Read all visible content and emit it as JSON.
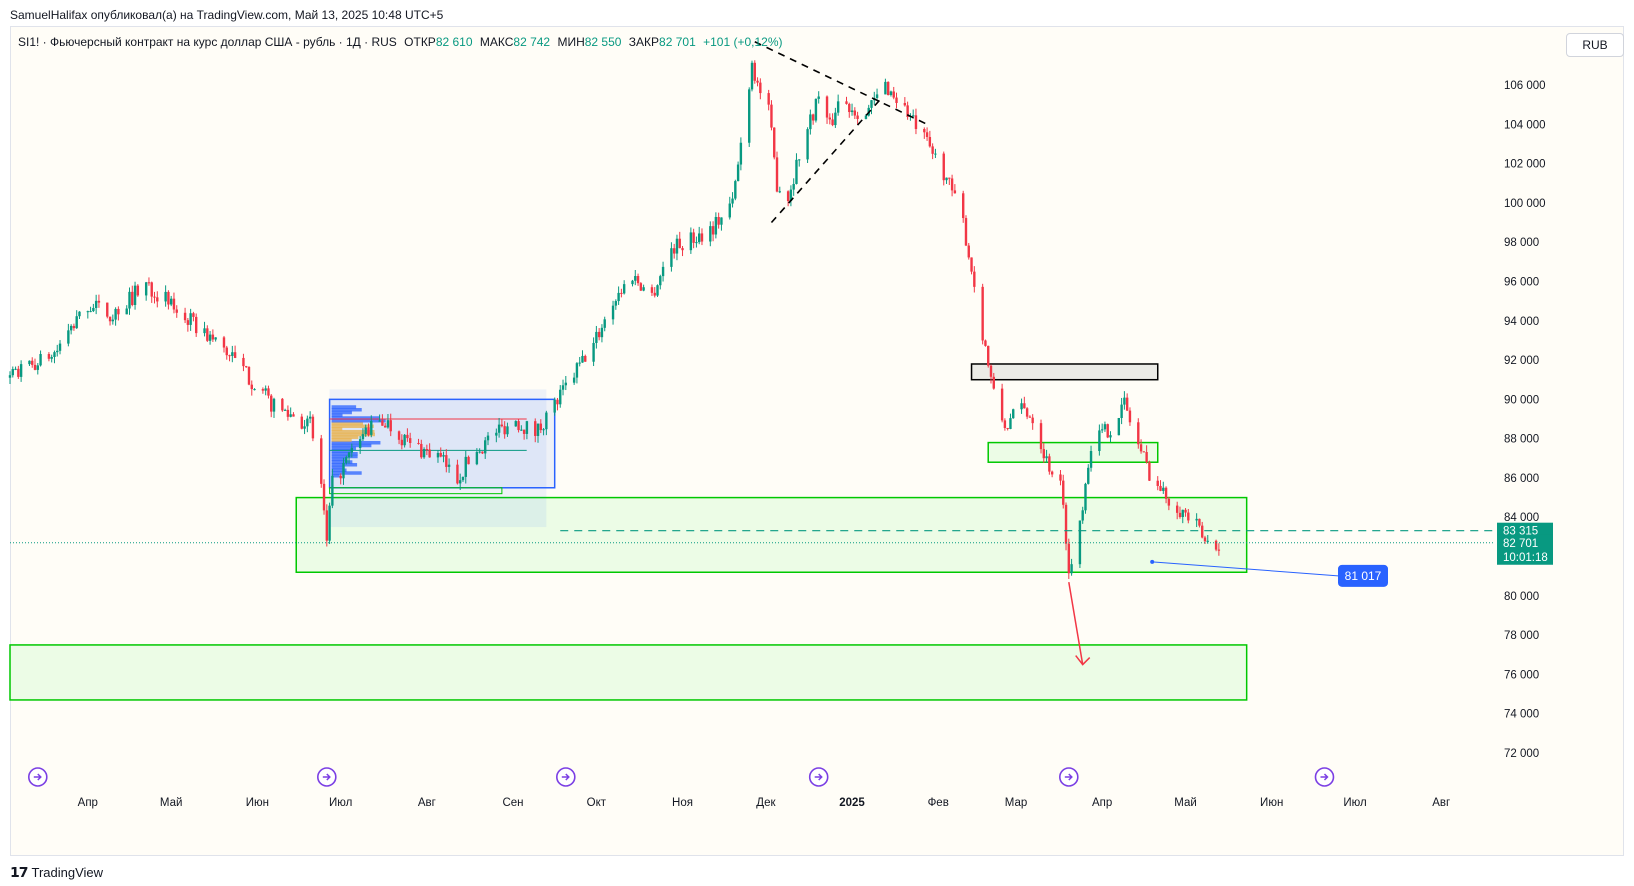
{
  "publish_line": "SamuelHalifax опубликовал(а) на TradingView.com, Май 13, 2025 10:48 UTC+5",
  "legend": {
    "symbol": "SI1! · Фьючерсный контракт на курс доллар США - рубль · 1Д · RUS",
    "open_label": "ОТКР",
    "open_value": "82 610",
    "high_label": "МАКС",
    "high_value": "82 742",
    "low_label": "МИН",
    "low_value": "82 550",
    "close_label": "ЗАКР",
    "close_value": "82 701",
    "change": "+101 (+0,12%)"
  },
  "currency_button": "RUB",
  "footer_logo_text": "TradingView",
  "colors": {
    "up": "#089981",
    "down": "#f23645",
    "zone_green": "#00c800",
    "zone_fill": "#e6fbe0",
    "blue_box": "#2962ff",
    "price_label_bg": "#089981",
    "alert_label_bg": "#2962ff"
  },
  "chart_data": {
    "type": "candlestick",
    "symbol": "SI1!",
    "interval": "1Д",
    "currency": "RUB",
    "y_range": [
      71000,
      109000
    ],
    "y_ticks": [
      72000,
      74000,
      76000,
      78000,
      80000,
      82000,
      84000,
      86000,
      88000,
      90000,
      92000,
      94000,
      96000,
      98000,
      100000,
      102000,
      104000,
      106000
    ],
    "y_tick_labels": [
      "72 000",
      "74 000",
      "76 000",
      "78 000",
      "80 000",
      "82 000",
      "84 000",
      "86 000",
      "88 000",
      "90 000",
      "92 000",
      "94 000",
      "96 000",
      "98 000",
      "100 000",
      "102 000",
      "104 000",
      "106 000"
    ],
    "x_domain": [
      "2024-03-04",
      "2025-08-20"
    ],
    "x_ticks": [
      {
        "date": "2024-04-01",
        "label": "Апр"
      },
      {
        "date": "2024-05-01",
        "label": "Май"
      },
      {
        "date": "2024-06-01",
        "label": "Июн"
      },
      {
        "date": "2024-07-01",
        "label": "Июл"
      },
      {
        "date": "2024-08-01",
        "label": "Авг"
      },
      {
        "date": "2024-09-01",
        "label": "Сен"
      },
      {
        "date": "2024-10-01",
        "label": "Окт"
      },
      {
        "date": "2024-11-01",
        "label": "Ноя"
      },
      {
        "date": "2024-12-01",
        "label": "Дек"
      },
      {
        "date": "2025-01-01",
        "label": "2025",
        "bold": true
      },
      {
        "date": "2025-02-01",
        "label": "Фев"
      },
      {
        "date": "2025-03-01",
        "label": "Мар"
      },
      {
        "date": "2025-04-01",
        "label": "Апр"
      },
      {
        "date": "2025-05-01",
        "label": "Май"
      },
      {
        "date": "2025-06-01",
        "label": "Июн"
      },
      {
        "date": "2025-07-01",
        "label": "Июл"
      },
      {
        "date": "2025-08-01",
        "label": "Авг"
      }
    ],
    "close_path": [
      [
        "2024-03-04",
        91100
      ],
      [
        "2024-03-20",
        92300
      ],
      [
        "2024-04-01",
        94800
      ],
      [
        "2024-04-10",
        94300
      ],
      [
        "2024-04-22",
        95900
      ],
      [
        "2024-04-30",
        94900
      ],
      [
        "2024-05-10",
        93700
      ],
      [
        "2024-05-20",
        92600
      ],
      [
        "2024-05-31",
        90800
      ],
      [
        "2024-06-07",
        89600
      ],
      [
        "2024-06-14",
        89200
      ],
      [
        "2024-06-20",
        88700
      ],
      [
        "2024-06-24",
        85700
      ],
      [
        "2024-06-26",
        82600
      ],
      [
        "2024-06-28",
        85700
      ],
      [
        "2024-07-03",
        86800
      ],
      [
        "2024-07-10",
        88400
      ],
      [
        "2024-07-17",
        88900
      ],
      [
        "2024-07-26",
        87700
      ],
      [
        "2024-08-05",
        87100
      ],
      [
        "2024-08-12",
        86000
      ],
      [
        "2024-08-16",
        86900
      ],
      [
        "2024-08-26",
        88400
      ],
      [
        "2024-09-02",
        88900
      ],
      [
        "2024-09-09",
        88300
      ],
      [
        "2024-09-16",
        89700
      ],
      [
        "2024-09-23",
        91300
      ],
      [
        "2024-09-30",
        92800
      ],
      [
        "2024-10-07",
        95000
      ],
      [
        "2024-10-14",
        96300
      ],
      [
        "2024-10-21",
        95300
      ],
      [
        "2024-10-28",
        97700
      ],
      [
        "2024-11-05",
        98200
      ],
      [
        "2024-11-12",
        98800
      ],
      [
        "2024-11-19",
        100000
      ],
      [
        "2024-11-22",
        103000
      ],
      [
        "2024-11-26",
        107200
      ],
      [
        "2024-11-28",
        106000
      ],
      [
        "2024-12-02",
        104600
      ],
      [
        "2024-12-05",
        101000
      ],
      [
        "2024-12-09",
        100300
      ],
      [
        "2024-12-13",
        102500
      ],
      [
        "2024-12-17",
        104200
      ],
      [
        "2024-12-20",
        105500
      ],
      [
        "2024-12-24",
        103800
      ],
      [
        "2024-12-27",
        105200
      ],
      [
        "2025-01-06",
        104500
      ],
      [
        "2025-01-13",
        106000
      ],
      [
        "2025-01-20",
        104800
      ],
      [
        "2025-01-27",
        103200
      ],
      [
        "2025-02-03",
        101600
      ],
      [
        "2025-02-10",
        99000
      ],
      [
        "2025-02-14",
        95800
      ],
      [
        "2025-02-18",
        92600
      ],
      [
        "2025-02-21",
        90200
      ],
      [
        "2025-02-25",
        88600
      ],
      [
        "2025-03-03",
        89600
      ],
      [
        "2025-03-07",
        89100
      ],
      [
        "2025-03-12",
        86900
      ],
      [
        "2025-03-17",
        85600
      ],
      [
        "2025-03-19",
        83100
      ],
      [
        "2025-03-20",
        81000
      ],
      [
        "2025-03-24",
        83800
      ],
      [
        "2025-03-28",
        87800
      ],
      [
        "2025-04-04",
        88600
      ],
      [
        "2025-04-09",
        89800
      ],
      [
        "2025-04-14",
        87700
      ],
      [
        "2025-04-18",
        86300
      ],
      [
        "2025-04-23",
        85200
      ],
      [
        "2025-04-28",
        84600
      ],
      [
        "2025-05-05",
        83500
      ],
      [
        "2025-05-08",
        82700
      ],
      [
        "2025-05-13",
        82701
      ]
    ],
    "ohlc_last": {
      "open": 82610,
      "high": 82742,
      "low": 82550,
      "close": 82701
    },
    "price_labels": [
      {
        "value": 83315,
        "text": "83 315"
      },
      {
        "value": 82701,
        "text": "82 701",
        "countdown": "10:01:18"
      }
    ],
    "alert_label": {
      "value": 81017,
      "text": "81 017"
    },
    "zones": [
      {
        "kind": "supply",
        "start": "2025-02-13",
        "end": "2025-04-21",
        "low": 91000,
        "high": 91800
      },
      {
        "kind": "demand",
        "start": "2025-02-19",
        "end": "2025-04-21",
        "low": 86800,
        "high": 87800
      },
      {
        "kind": "demand",
        "start": "2024-06-15",
        "end": "2025-05-23",
        "low": 81200,
        "high": 85000
      },
      {
        "kind": "demand",
        "start": "2024-03-04",
        "end": "2025-05-23",
        "low": 74700,
        "high": 77500
      }
    ],
    "range_box": {
      "start": "2024-06-27",
      "end": "2024-09-16",
      "low": 85500,
      "high": 90000
    },
    "trendlines": [
      {
        "from": [
          "2024-11-27",
          108200
        ],
        "to": [
          "2025-01-28",
          104000
        ],
        "style": "dashed"
      },
      {
        "from": [
          "2024-12-03",
          99000
        ],
        "to": [
          "2025-01-12",
          105400
        ],
        "style": "dashed"
      }
    ],
    "levels": [
      {
        "value": 83315,
        "style": "dashed",
        "start": "2024-09-18"
      }
    ],
    "projection_arrow": {
      "from": [
        "2025-03-20",
        80700
      ],
      "to": [
        "2025-03-25",
        76500
      ]
    },
    "event_icon_dates": [
      "2024-03-14",
      "2024-06-26",
      "2024-09-20",
      "2024-12-20",
      "2025-03-20",
      "2025-06-20"
    ]
  }
}
